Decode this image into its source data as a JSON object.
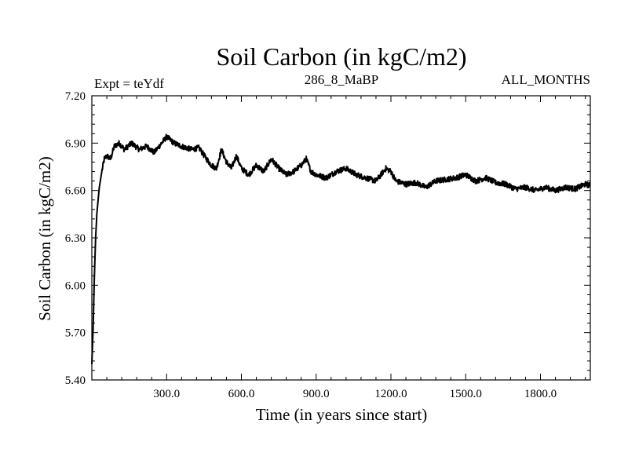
{
  "chart_data": {
    "type": "line",
    "title": "Soil Carbon (in kgC/m2)",
    "experiment_label": "Expt = teYdf",
    "subtitle_center": "286_8_MaBP",
    "subtitle_right": "ALL_MONTHS",
    "xlabel": "Time (in years since start)",
    "ylabel": "Soil Carbon (in kgC/m2)",
    "xlim": [
      0,
      2000
    ],
    "ylim": [
      5.4,
      7.2
    ],
    "x_ticks": [
      300,
      600,
      900,
      1200,
      1500,
      1800
    ],
    "x_tick_labels": [
      "300.0",
      "600.0",
      "900.0",
      "1200.0",
      "1500.0",
      "1800.0"
    ],
    "y_ticks": [
      5.4,
      5.7,
      6.0,
      6.3,
      6.6,
      6.9,
      7.2
    ],
    "y_tick_labels": [
      "5.40",
      "5.70",
      "6.00",
      "6.30",
      "6.60",
      "6.90",
      "7.20"
    ],
    "line_color": "#000000",
    "series": [
      {
        "name": "Soil Carbon",
        "x": [
          0,
          5,
          10,
          15,
          20,
          30,
          40,
          50,
          60,
          75,
          90,
          110,
          130,
          160,
          190,
          220,
          250,
          280,
          300,
          330,
          360,
          400,
          430,
          460,
          480,
          500,
          520,
          540,
          560,
          580,
          600,
          630,
          660,
          690,
          720,
          750,
          780,
          810,
          840,
          860,
          880,
          900,
          940,
          980,
          1020,
          1060,
          1100,
          1140,
          1180,
          1200,
          1220,
          1260,
          1300,
          1340,
          1380,
          1420,
          1460,
          1500,
          1540,
          1580,
          1620,
          1660,
          1700,
          1740,
          1780,
          1820,
          1860,
          1900,
          1940,
          1980,
          2000
        ],
        "values": [
          5.5,
          5.72,
          6.05,
          6.3,
          6.45,
          6.62,
          6.72,
          6.8,
          6.82,
          6.8,
          6.88,
          6.9,
          6.86,
          6.9,
          6.86,
          6.88,
          6.84,
          6.9,
          6.94,
          6.9,
          6.88,
          6.86,
          6.87,
          6.8,
          6.76,
          6.74,
          6.86,
          6.78,
          6.74,
          6.82,
          6.74,
          6.7,
          6.76,
          6.72,
          6.8,
          6.74,
          6.7,
          6.72,
          6.76,
          6.8,
          6.72,
          6.7,
          6.68,
          6.72,
          6.74,
          6.7,
          6.68,
          6.66,
          6.74,
          6.72,
          6.66,
          6.64,
          6.65,
          6.62,
          6.66,
          6.67,
          6.68,
          6.7,
          6.66,
          6.68,
          6.65,
          6.64,
          6.61,
          6.62,
          6.6,
          6.62,
          6.6,
          6.62,
          6.61,
          6.64,
          6.63
        ]
      }
    ]
  }
}
